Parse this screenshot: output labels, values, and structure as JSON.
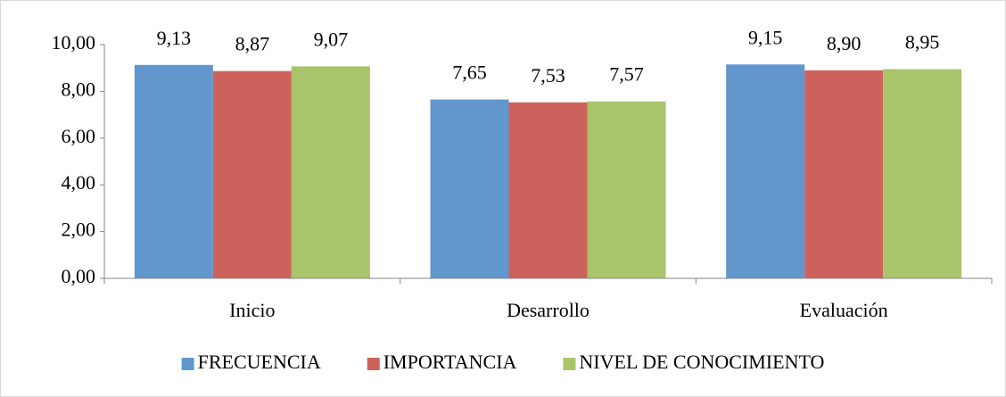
{
  "chart_data": {
    "type": "bar",
    "categories": [
      "Inicio",
      "Desarrollo",
      "Evaluación"
    ],
    "series": [
      {
        "name": "FRECUENCIA",
        "color": "#6197cc",
        "values": [
          9.13,
          7.65,
          9.15
        ],
        "value_labels": [
          "9,13",
          "7,65",
          "9,15"
        ]
      },
      {
        "name": "IMPORTANCIA",
        "color": "#cd625d",
        "values": [
          8.87,
          7.53,
          8.9
        ],
        "value_labels": [
          "8,87",
          "7,53",
          "8,90"
        ]
      },
      {
        "name": "NIVEL DE CONOCIMIENTO",
        "color": "#a9c46a",
        "values": [
          9.07,
          7.57,
          8.95
        ],
        "value_labels": [
          "9,07",
          "7,57",
          "8,95"
        ]
      }
    ],
    "ylim": [
      0,
      10
    ],
    "yticks": [
      {
        "value": 0,
        "label": "0,00"
      },
      {
        "value": 2,
        "label": "2,00"
      },
      {
        "value": 4,
        "label": "4,00"
      },
      {
        "value": 6,
        "label": "6,00"
      },
      {
        "value": 8,
        "label": "8,00"
      },
      {
        "value": 10,
        "label": "10,00"
      }
    ],
    "grid": false,
    "legend": "bottom"
  }
}
